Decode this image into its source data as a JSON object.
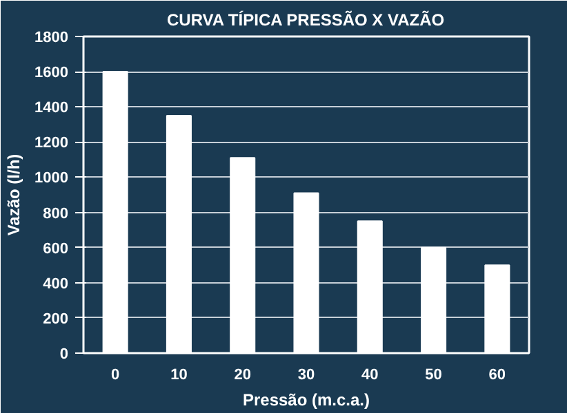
{
  "chart_data": {
    "type": "bar",
    "title": "CURVA TÍPICA PRESSÃO X VAZÃO",
    "xlabel": "Pressão (m.c.a.)",
    "ylabel": "Vazão (l/h)",
    "categories": [
      "0",
      "10",
      "20",
      "30",
      "40",
      "50",
      "60"
    ],
    "values": [
      1600,
      1350,
      1110,
      910,
      750,
      600,
      500
    ],
    "color": "#ffffff",
    "ylim": [
      0,
      1800
    ],
    "yticks": [
      0,
      200,
      400,
      600,
      800,
      1000,
      1200,
      1400,
      1600,
      1800
    ],
    "grid": "y"
  }
}
